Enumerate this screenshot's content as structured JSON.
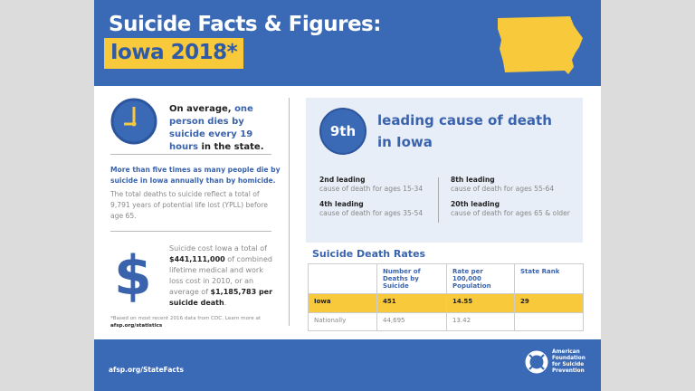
{
  "header": {
    "title": "Suicide Facts & Figures:",
    "subtitle": "Iowa 2018*"
  },
  "left": {
    "clock_text": {
      "a": "On average, ",
      "b": "one person dies by suicide every 19 hours",
      "c": " in the state."
    },
    "homicide_heading": "More than five times as many people die by suicide in Iowa annually than by homicide.",
    "yppl_text": "The total deaths to suicide reflect a total of 9,791 years of potential life lost (YPLL) before age 65.",
    "cost": {
      "a": "Suicide cost Iowa a total of ",
      "b": "$441,111,000",
      "c": " of combined lifetime medical and work loss cost in 2010, or an average of ",
      "d": "$1,185,783 per suicide death",
      "e": "."
    },
    "dollar": "$",
    "footnote": "*Based on most recent 2016 data from CDC. Learn more at",
    "footnote_link": "afsp.org/statistics"
  },
  "rank": {
    "badge": "9th",
    "heading": "leading cause of death in Iowa",
    "items": [
      {
        "title": "2nd leading",
        "desc": "cause of death for ages 15-34"
      },
      {
        "title": "4th leading",
        "desc": "cause of death for ages 35-54"
      },
      {
        "title": "8th leading",
        "desc": "cause of death for ages 55-64"
      },
      {
        "title": "20th leading",
        "desc": "cause of death for ages 65 & older"
      }
    ]
  },
  "table": {
    "title": "Suicide Death Rates",
    "headers": [
      "",
      "Number of Deaths by Suicide",
      "Rate per 100,000 Population",
      "State Rank"
    ],
    "rows": [
      [
        "Iowa",
        "451",
        "14.55",
        "29"
      ],
      [
        "Nationally",
        "44,695",
        "13.42",
        ""
      ]
    ]
  },
  "footer": {
    "link": "afsp.org/StateFacts",
    "org": "American Foundation for Suicide Prevention"
  },
  "colors": {
    "blue": "#3a69b6",
    "yellow": "#f8c93a"
  }
}
